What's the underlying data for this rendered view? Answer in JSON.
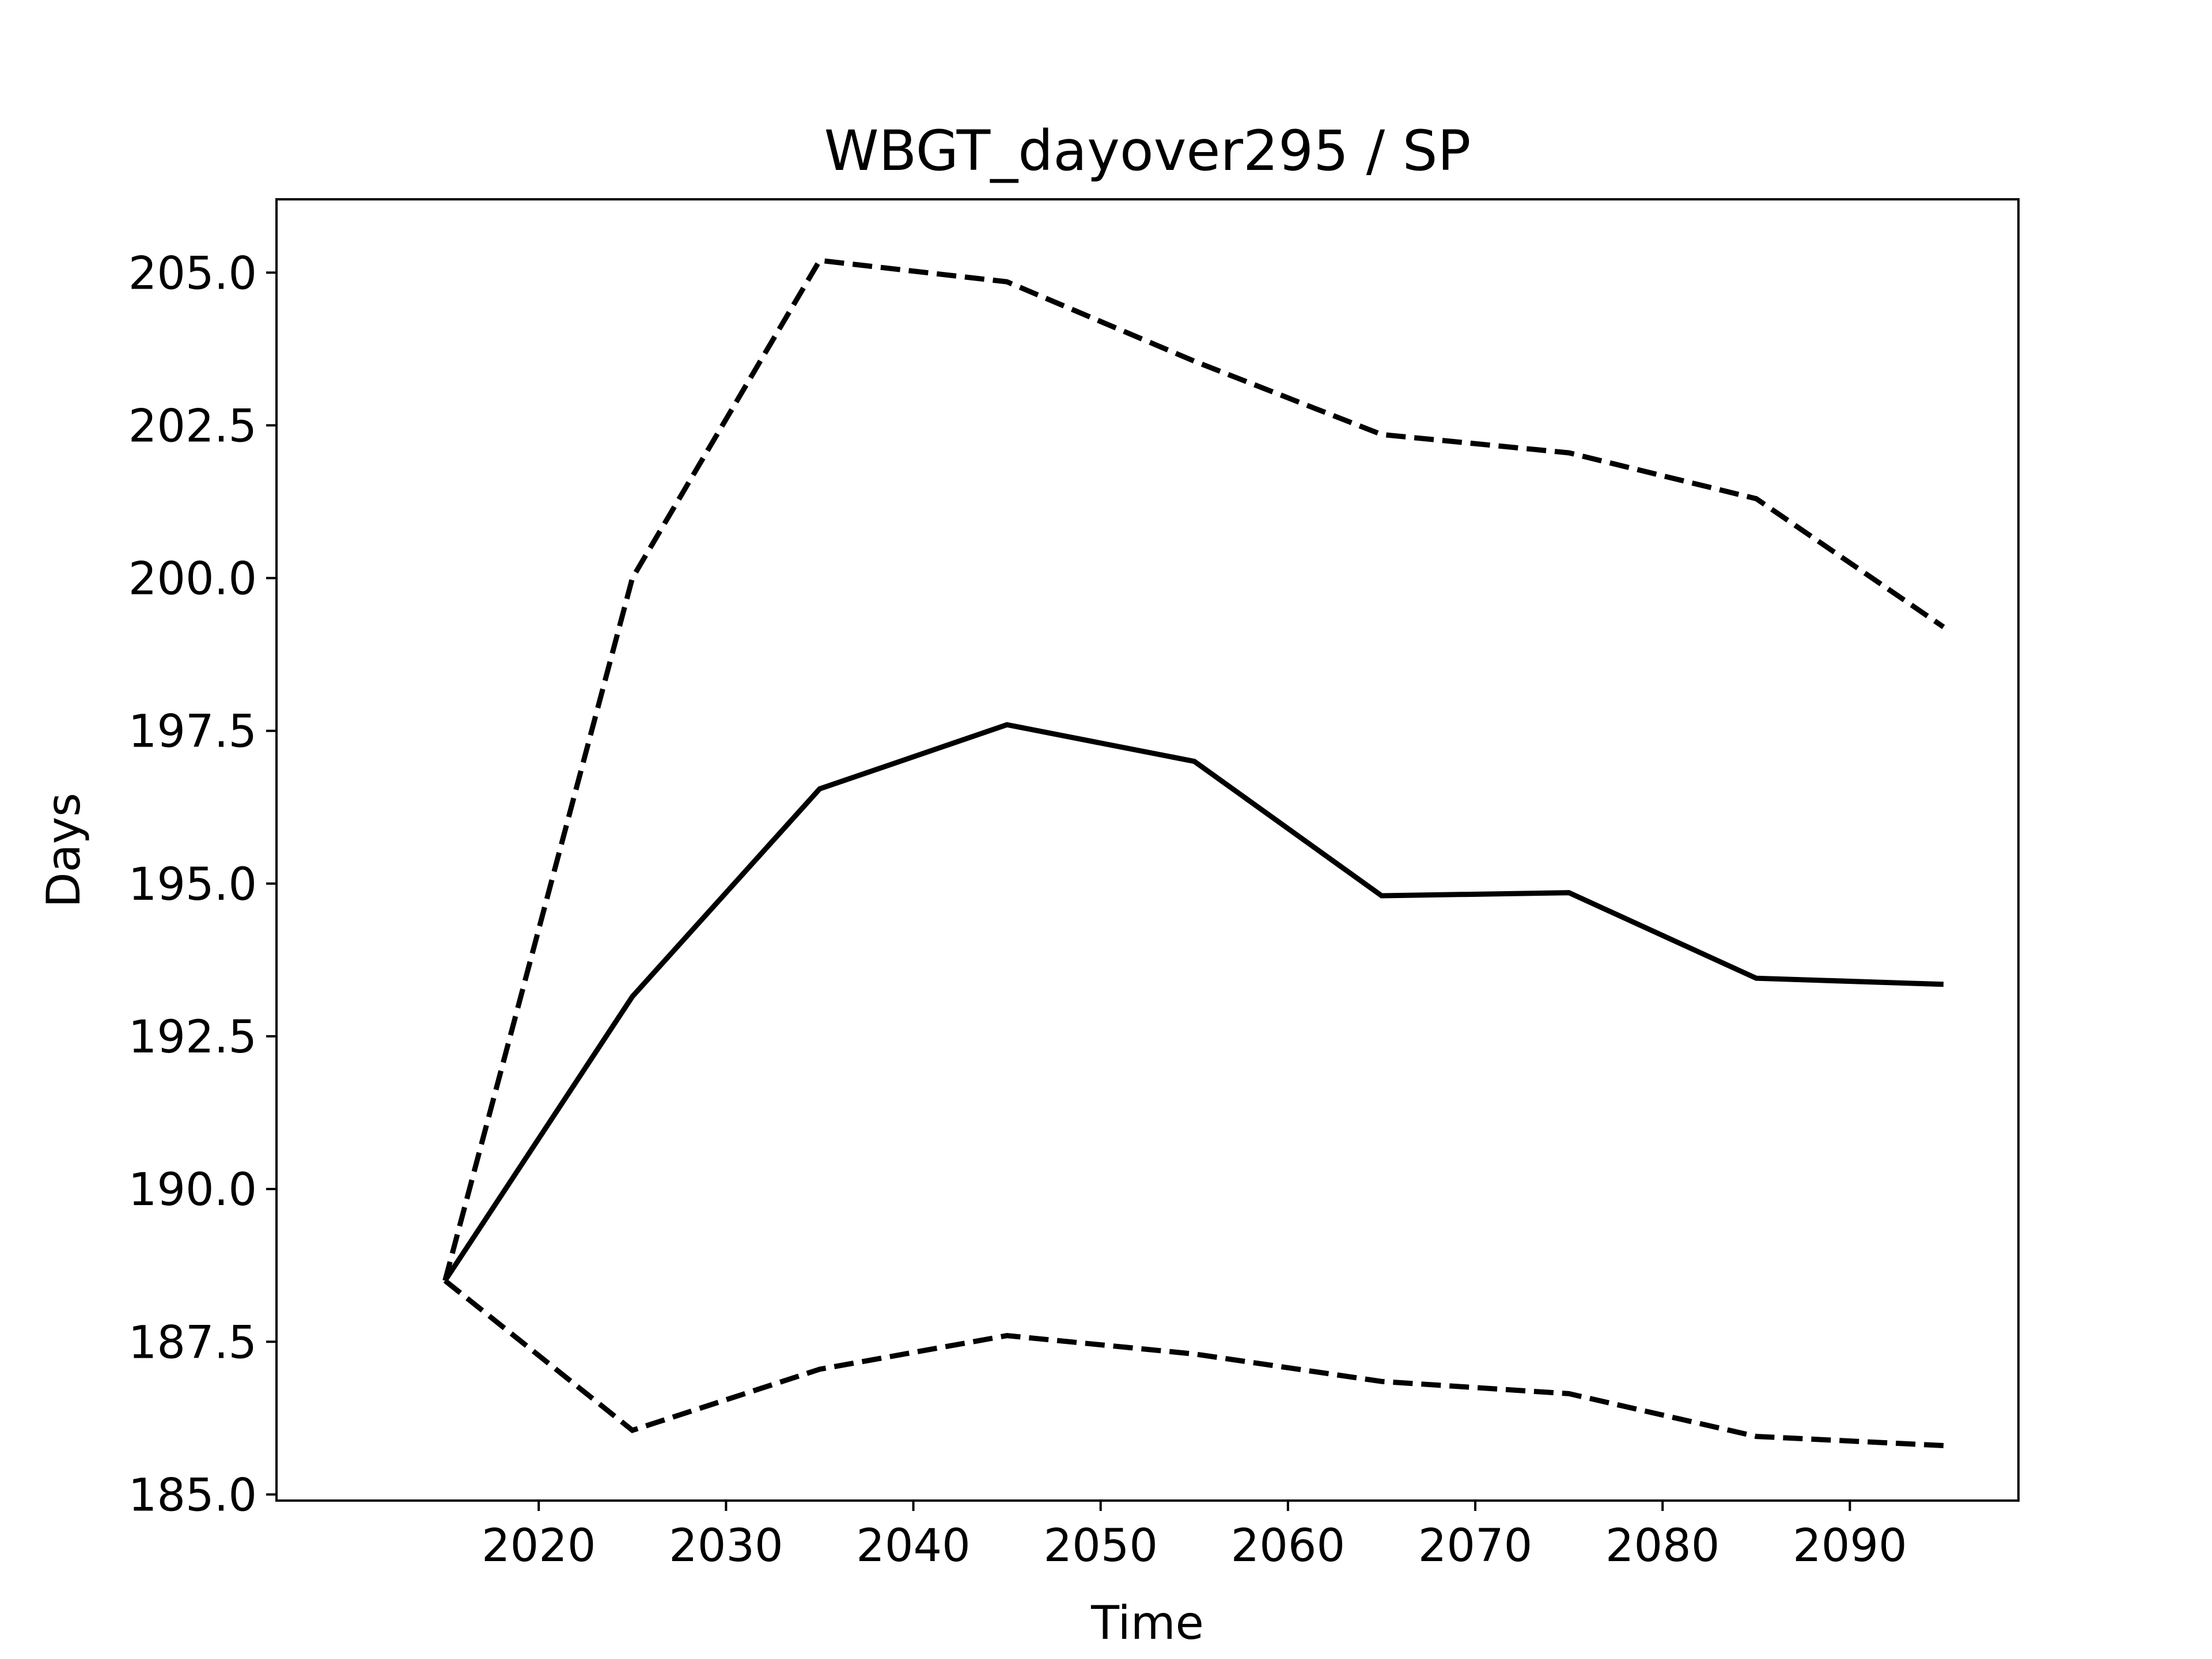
{
  "chart_data": {
    "type": "line",
    "title": "WBGT_dayover295 / SP",
    "xlabel": "Time",
    "ylabel": "Days",
    "x": [
      2015,
      2025,
      2035,
      2045,
      2055,
      2065,
      2075,
      2085,
      2095
    ],
    "xlim": [
      2006,
      2099
    ],
    "ylim": [
      184.9,
      206.2
    ],
    "xticks": [
      2020,
      2030,
      2040,
      2050,
      2060,
      2070,
      2080,
      2090
    ],
    "yticks": [
      185.0,
      187.5,
      190.0,
      192.5,
      195.0,
      197.5,
      200.0,
      202.5,
      205.0
    ],
    "ytick_labels": [
      "185.0",
      "187.5",
      "190.0",
      "192.5",
      "195.0",
      "197.5",
      "200.0",
      "202.5",
      "205.0"
    ],
    "xtick_labels": [
      "2020",
      "2030",
      "2040",
      "2050",
      "2060",
      "2070",
      "2080",
      "2090"
    ],
    "grid": false,
    "series": [
      {
        "style": "solid",
        "color": "#000000",
        "values": [
          188.5,
          193.15,
          196.55,
          197.6,
          197.0,
          194.8,
          194.85,
          193.45,
          193.35
        ]
      },
      {
        "style": "dashed",
        "color": "#000000",
        "values": [
          188.5,
          200.0,
          205.2,
          204.85,
          203.55,
          202.35,
          202.05,
          201.3,
          199.2
        ]
      },
      {
        "style": "dashed",
        "color": "#000000",
        "values": [
          188.5,
          186.05,
          187.05,
          187.6,
          187.3,
          186.85,
          186.65,
          185.95,
          185.8
        ]
      }
    ]
  }
}
